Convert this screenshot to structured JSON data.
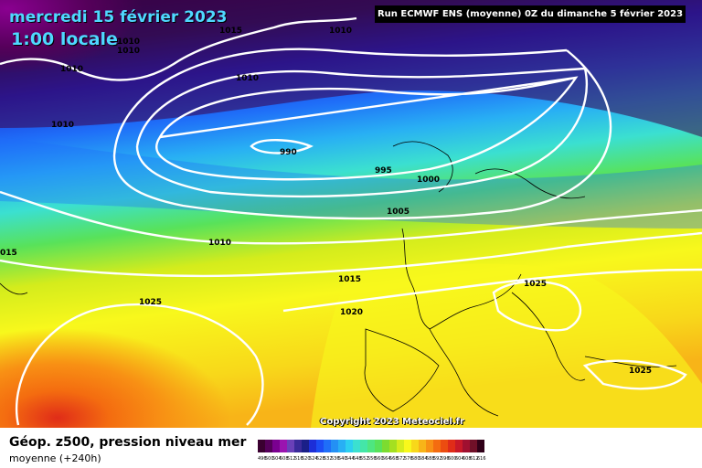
{
  "header": {
    "date": "mercredi 15 février 2023",
    "time": "1:00 locale",
    "run": "Run ECMWF ENS (moyenne) 0Z du dimanche 5 février 2023"
  },
  "copyright": "Copyright 2023 Meteociel.fr",
  "footer": {
    "title": "Géop. z500, pression niveau mer",
    "subtitle": "moyenne  (+240h)"
  },
  "isobars": [
    {
      "label": "1015"
    },
    {
      "label": "1010"
    },
    {
      "label": "1010"
    },
    {
      "label": "1010"
    },
    {
      "label": "1010"
    },
    {
      "label": "1010"
    },
    {
      "label": "990"
    },
    {
      "label": "995"
    },
    {
      "label": "1000"
    },
    {
      "label": "1005"
    },
    {
      "label": "1010"
    },
    {
      "label": "015"
    },
    {
      "label": "1015"
    },
    {
      "label": "1020"
    },
    {
      "label": "1025"
    },
    {
      "label": "1025"
    },
    {
      "label": "1025"
    },
    {
      "label": "1010"
    }
  ],
  "legend": {
    "labels": [
      "496",
      "500",
      "504",
      "508",
      "512",
      "516",
      "520",
      "524",
      "528",
      "532",
      "536",
      "540",
      "544",
      "548",
      "552",
      "556",
      "560",
      "564",
      "568",
      "572",
      "576",
      "580",
      "584",
      "588",
      "592",
      "596",
      "600",
      "604",
      "608",
      "612",
      "616"
    ],
    "colors": [
      "#3a0030",
      "#55005a",
      "#7a0090",
      "#9a14b0",
      "#6a40b8",
      "#3a2a9a",
      "#1a1f88",
      "#1c2ed8",
      "#1c4cf4",
      "#1f6ef8",
      "#2490f4",
      "#28aff4",
      "#2ccff0",
      "#3be0d0",
      "#44e6a8",
      "#4ee680",
      "#58e25a",
      "#7cdc30",
      "#a4e020",
      "#d4ec1c",
      "#f8f81c",
      "#f8d81a",
      "#f8b418",
      "#f89014",
      "#f46c10",
      "#ec4c10",
      "#e02c18",
      "#c81828",
      "#a01030",
      "#701028",
      "#300018"
    ]
  }
}
